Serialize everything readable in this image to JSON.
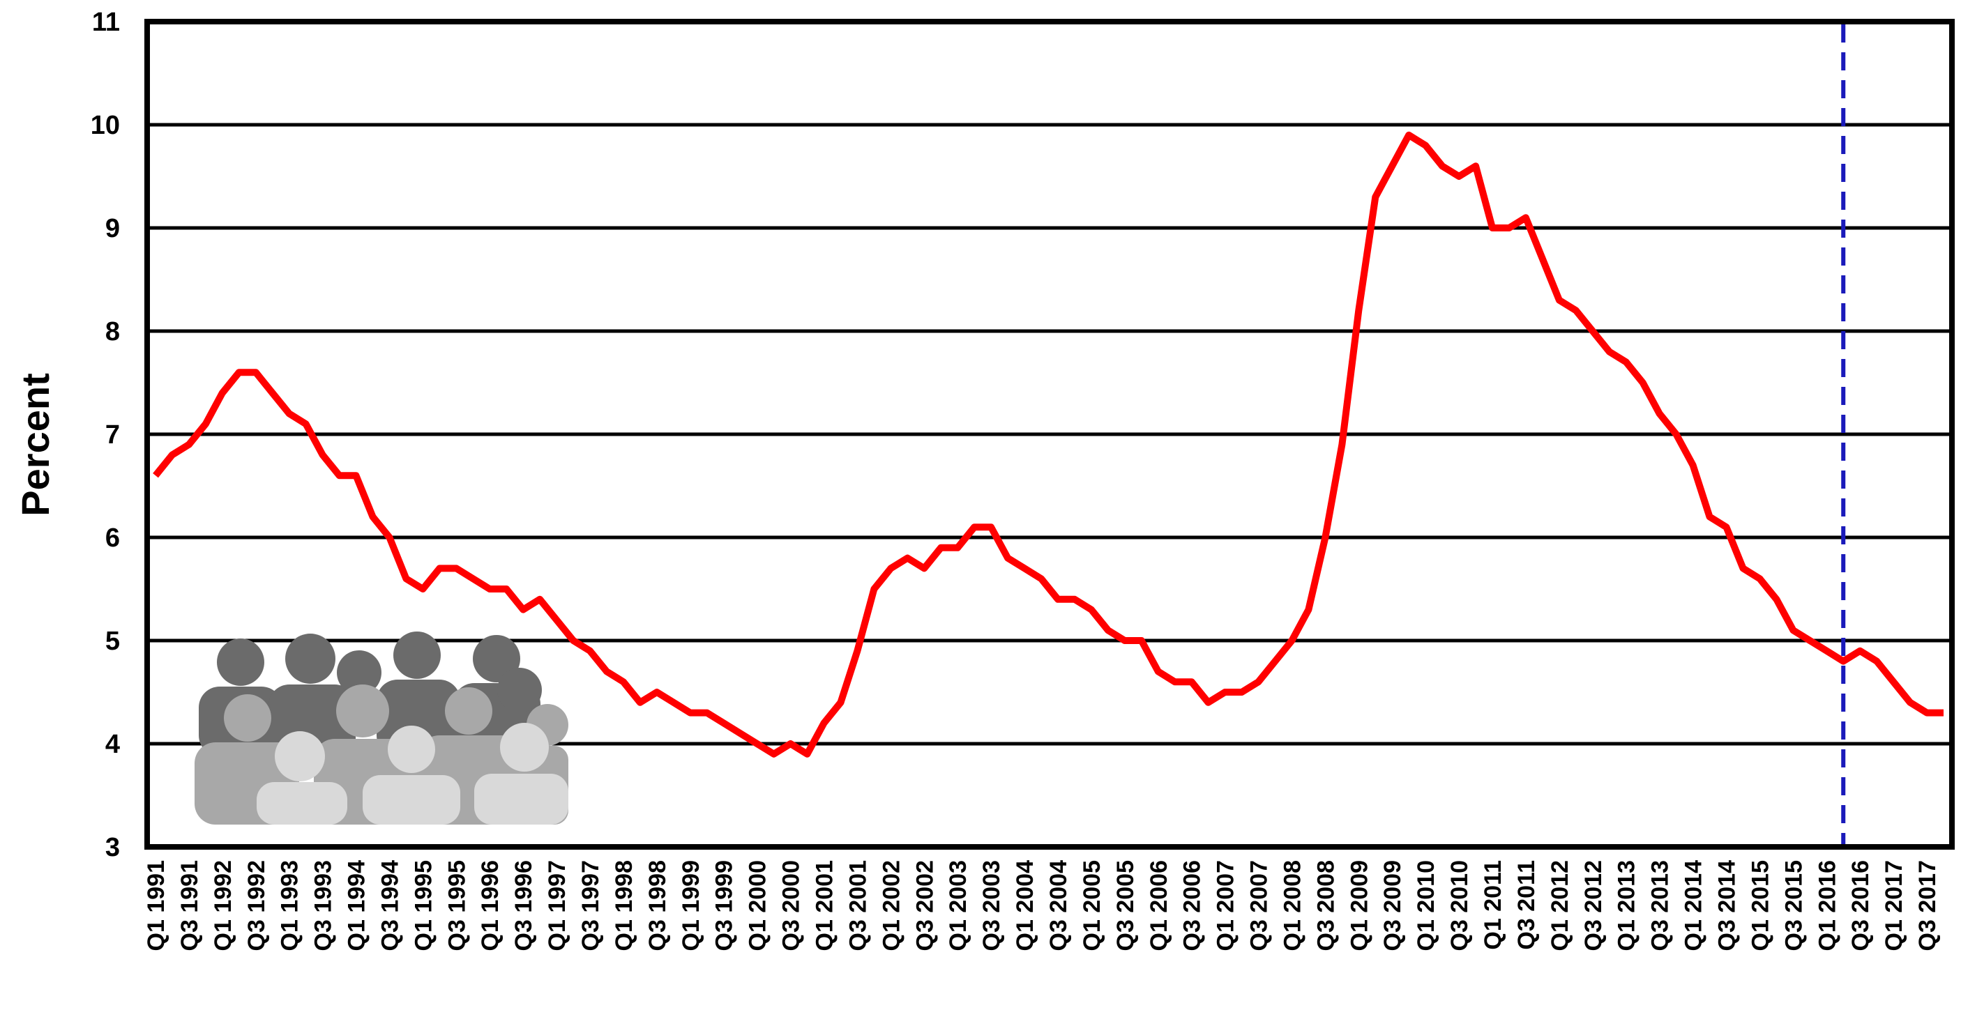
{
  "chart_data": {
    "type": "line",
    "ylabel": "Percent",
    "categories": [
      "Q1 1991",
      null,
      "Q3 1991",
      null,
      "Q1 1992",
      null,
      "Q3 1992",
      null,
      "Q1 1993",
      null,
      "Q3 1993",
      null,
      "Q1 1994",
      null,
      "Q3 1994",
      null,
      "Q1 1995",
      null,
      "Q3 1995",
      null,
      "Q1 1996",
      null,
      "Q3 1996",
      null,
      "Q1 1997",
      null,
      "Q3 1997",
      null,
      "Q1 1998",
      null,
      "Q3 1998",
      null,
      "Q1 1999",
      null,
      "Q3 1999",
      null,
      "Q1 2000",
      null,
      "Q3 2000",
      null,
      "Q1 2001",
      null,
      "Q3 2001",
      null,
      "Q1 2002",
      null,
      "Q3 2002",
      null,
      "Q1 2003",
      null,
      "Q3 2003",
      null,
      "Q1 2004",
      null,
      "Q3 2004",
      null,
      "Q1 2005",
      null,
      "Q3 2005",
      null,
      "Q1 2006",
      null,
      "Q3 2006",
      null,
      "Q1 2007",
      null,
      "Q3 2007",
      null,
      "Q1 2008",
      null,
      "Q3 2008",
      null,
      "Q1 2009",
      null,
      "Q3 2009",
      null,
      "Q1 2010",
      null,
      "Q3 2010",
      null,
      "Q1 2011",
      null,
      "Q3 2011",
      null,
      "Q1 2012",
      null,
      "Q3 2012",
      null,
      "Q1 2013",
      null,
      "Q3 2013",
      null,
      "Q1 2014",
      null,
      "Q3 2014",
      null,
      "Q1 2015",
      null,
      "Q3 2015",
      null,
      "Q1 2016",
      null,
      "Q3 2016",
      null,
      "Q1 2017",
      null,
      "Q3 2017",
      null
    ],
    "values": [
      6.6,
      6.8,
      6.9,
      7.1,
      7.4,
      7.6,
      7.6,
      7.4,
      7.2,
      7.1,
      6.8,
      6.6,
      6.6,
      6.2,
      6.0,
      5.6,
      5.5,
      5.7,
      5.7,
      5.6,
      5.5,
      5.5,
      5.3,
      5.4,
      5.2,
      5.0,
      4.9,
      4.7,
      4.6,
      4.4,
      4.5,
      4.4,
      4.3,
      4.3,
      4.2,
      4.1,
      4.0,
      3.9,
      4.0,
      3.9,
      4.2,
      4.4,
      4.9,
      5.5,
      5.7,
      5.8,
      5.7,
      5.9,
      5.9,
      6.1,
      6.1,
      5.8,
      5.7,
      5.6,
      5.4,
      5.4,
      5.3,
      5.1,
      5.0,
      5.0,
      4.7,
      4.6,
      4.6,
      4.4,
      4.5,
      4.5,
      4.6,
      4.8,
      5.0,
      5.3,
      6.0,
      6.9,
      8.2,
      9.3,
      9.6,
      9.9,
      9.8,
      9.6,
      9.5,
      9.6,
      9.0,
      9.0,
      9.1,
      8.7,
      8.3,
      8.2,
      8.0,
      7.8,
      7.7,
      7.5,
      7.2,
      7.0,
      6.7,
      6.2,
      6.1,
      5.7,
      5.6,
      5.4,
      5.1,
      5.0,
      4.9,
      4.8,
      4.9,
      4.8,
      4.6,
      4.4,
      4.3,
      4.3
    ],
    "color": "#ff0000",
    "ylim": [
      3,
      11
    ],
    "yticks": [
      3,
      4,
      5,
      6,
      7,
      8,
      9,
      10,
      11
    ],
    "grid": true,
    "vline": {
      "x": 101,
      "color": "#1a1aba"
    }
  }
}
